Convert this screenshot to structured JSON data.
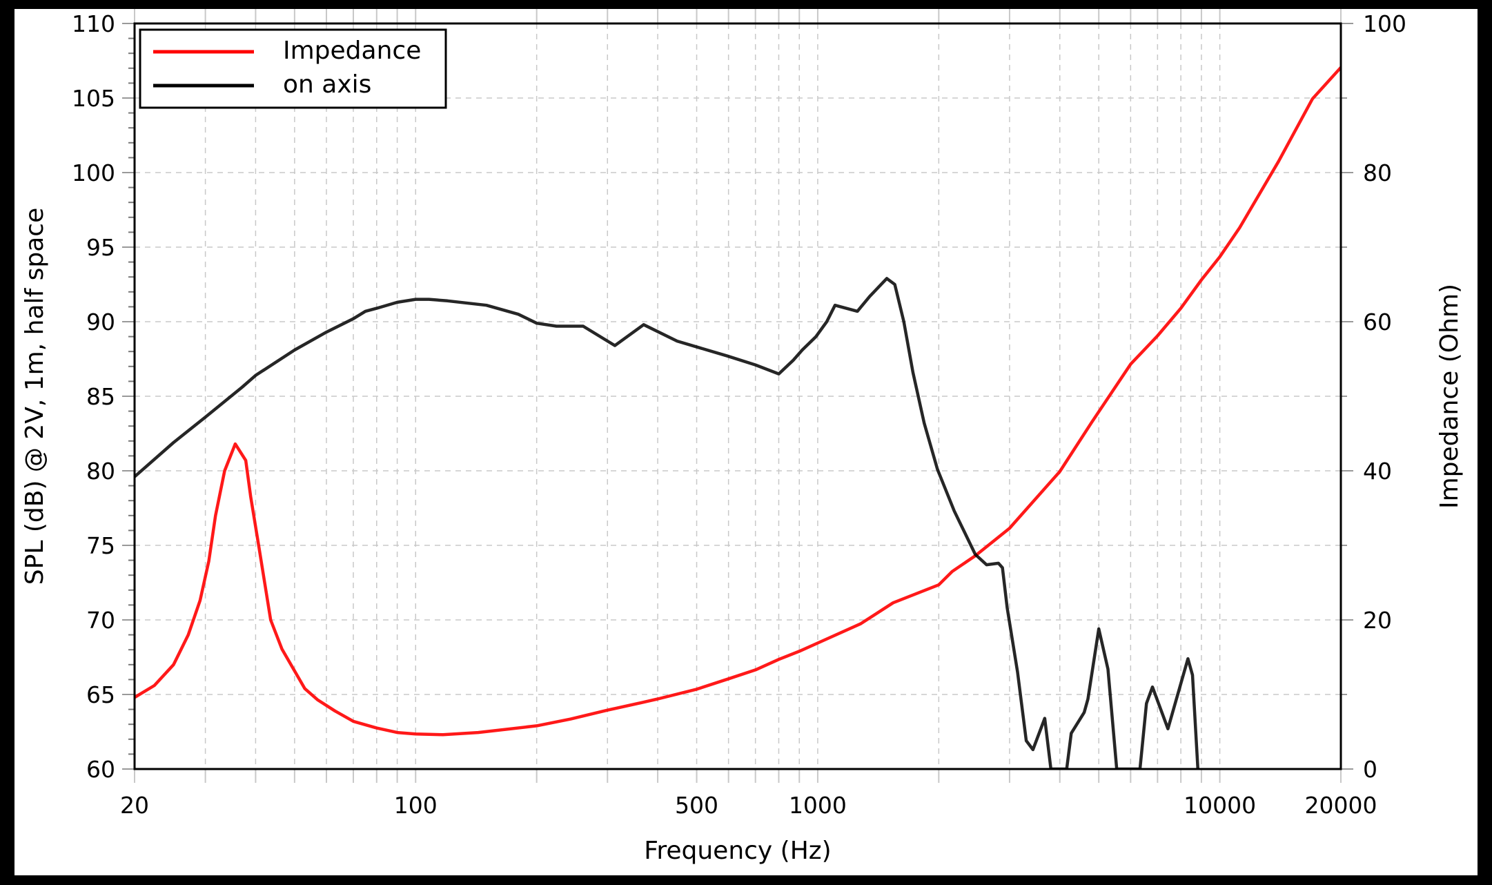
{
  "colors": {
    "impedance": "#ff0000",
    "spl": "#000000",
    "grid": "#c8c8c8",
    "background": "#ffffff",
    "frame": "#000000"
  },
  "legend": {
    "entries": [
      {
        "label": "Impedance",
        "color": "#ff0000"
      },
      {
        "label": "on axis",
        "color": "#000000"
      }
    ]
  },
  "axes": {
    "x_title": "Frequency (Hz)",
    "y_left_title": "SPL (dB) @ 2V, 1m, half space",
    "y_right_title": "Impedance (Ohm)",
    "x_tick_labels": [
      "20",
      "100",
      "500",
      "1000",
      "10000",
      "20000"
    ],
    "y_left_tick_labels": [
      "60",
      "65",
      "70",
      "75",
      "80",
      "85",
      "90",
      "95",
      "100",
      "105",
      "110"
    ],
    "y_right_tick_labels": [
      "0",
      "20",
      "40",
      "60",
      "80",
      "100"
    ]
  },
  "chart_data": {
    "type": "line",
    "title": "",
    "xlabel": "Frequency (Hz)",
    "ylabel": "SPL (dB) @ 2V, 1m, half space",
    "y2label": "Impedance (Ohm)",
    "xscale": "log",
    "xlim": [
      20,
      20000
    ],
    "ylim": [
      60,
      110
    ],
    "y2lim": [
      0,
      100
    ],
    "x_ticks": [
      20,
      100,
      500,
      1000,
      10000,
      20000
    ],
    "y_ticks": [
      60,
      65,
      70,
      75,
      80,
      85,
      90,
      95,
      100,
      105,
      110
    ],
    "y2_ticks": [
      0,
      20,
      40,
      60,
      80,
      100
    ],
    "grid": true,
    "legend_position": "upper left",
    "series": [
      {
        "name": "Impedance",
        "axis": "right",
        "unit": "Ohm",
        "color": "#ff0000",
        "x": [
          20,
          22.4,
          25,
          27.2,
          29.1,
          30.6,
          31.8,
          33.5,
          35.6,
          37.8,
          38.9,
          40.7,
          43.6,
          46.5,
          53,
          57,
          63,
          70,
          80,
          90,
          100,
          117,
          143,
          200,
          243,
          300,
          364,
          400,
          500,
          600,
          700,
          800,
          900,
          1000,
          1280,
          1540,
          2000,
          2160,
          2465,
          3000,
          4000,
          4800,
          6000,
          7000,
          8000,
          9000,
          10000,
          11200,
          14000,
          17000,
          20000
        ],
        "y": [
          9.6,
          11.2,
          14.0,
          18.0,
          22.6,
          27.9,
          34.0,
          40.0,
          43.6,
          41.4,
          36.5,
          30.0,
          20.0,
          16.1,
          10.8,
          9.3,
          7.8,
          6.4,
          5.5,
          4.9,
          4.7,
          4.6,
          4.9,
          5.8,
          6.7,
          7.9,
          8.9,
          9.4,
          10.7,
          12.1,
          13.3,
          14.7,
          15.8,
          16.9,
          19.5,
          22.3,
          24.7,
          26.5,
          28.6,
          32.3,
          39.9,
          46.5,
          54.3,
          58.1,
          61.8,
          65.6,
          68.7,
          72.6,
          81.5,
          89.9,
          94.1
        ]
      },
      {
        "name": "on axis",
        "axis": "left",
        "unit": "dB",
        "color": "#000000",
        "x": [
          20,
          25,
          30,
          37,
          40,
          50,
          60,
          70,
          75,
          80,
          90,
          100,
          108,
          120,
          150,
          180,
          200,
          224,
          261,
          313,
          369,
          447,
          596,
          700,
          800,
          868,
          915,
          990,
          1053,
          1104,
          1255,
          1347,
          1485,
          1555,
          1637,
          1725,
          1840,
          1985,
          2186,
          2465,
          2630,
          2815,
          2880,
          2960,
          3140,
          3300,
          3430,
          3670,
          3800,
          4160,
          4270,
          4600,
          4700,
          5000,
          5270,
          5540,
          6330,
          6570,
          6800,
          7430,
          8330,
          8550,
          8820
        ],
        "y": [
          79.6,
          81.9,
          83.6,
          85.6,
          86.4,
          88.1,
          89.3,
          90.2,
          90.7,
          90.9,
          91.3,
          91.5,
          91.5,
          91.4,
          91.1,
          90.5,
          89.9,
          89.7,
          89.7,
          88.4,
          89.8,
          88.7,
          87.7,
          87.1,
          86.5,
          87.4,
          88.1,
          89.0,
          90.0,
          91.1,
          90.7,
          91.7,
          92.9,
          92.5,
          90.0,
          86.6,
          83.2,
          80.1,
          77.3,
          74.4,
          73.7,
          73.8,
          73.5,
          70.8,
          66.5,
          61.9,
          61.3,
          63.4,
          60.0,
          60.0,
          62.4,
          63.8,
          64.7,
          69.4,
          66.7,
          60.0,
          60.0,
          64.4,
          65.5,
          62.7,
          67.4,
          66.3,
          60.0
        ]
      }
    ]
  }
}
